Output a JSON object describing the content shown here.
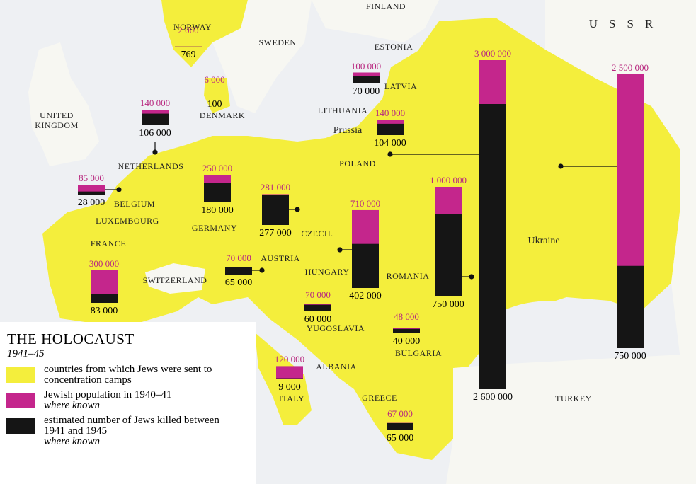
{
  "title": "THE HOLOCAUST",
  "period": "1941–45",
  "legend": [
    {
      "label": "countries from which Jews were sent to concentration camps",
      "color": "#f4ee3c"
    },
    {
      "label": "Jewish population in 1940–41",
      "note": "where known",
      "color": "#c4268c"
    },
    {
      "label": "estimated number of Jews killed between 1941 and 1945",
      "note": "where known",
      "color": "#151515"
    }
  ],
  "map_labels": [
    "NORWAY",
    "SWEDEN",
    "FINLAND",
    "ESTONIA",
    "LATVIA",
    "LITHUANIA",
    "Prussia",
    "POLAND",
    "UNITED KINGDOM",
    "DENMARK",
    "NETHERLANDS",
    "BELGIUM",
    "LUXEMBOURG",
    "GERMANY",
    "CZECH.",
    "FRANCE",
    "AUSTRIA",
    "SWITZERLAND",
    "HUNGARY",
    "ROMANIA",
    "YUGOSLAVIA",
    "BULGARIA",
    "ALBANIA",
    "ITALY",
    "GREECE",
    "TURKEY",
    "Ukraine",
    "USSR"
  ],
  "bars": [
    {
      "population": {
        "value": 2000,
        "label": "2 000"
      },
      "killed": {
        "value": 769,
        "label": "769"
      }
    },
    {
      "population": {
        "value": 6000,
        "label": "6 000"
      },
      "killed": {
        "value": 100,
        "label": "100"
      }
    },
    {
      "population": {
        "value": 140000,
        "label": "140 000"
      },
      "killed": {
        "value": 106000,
        "label": "106 000"
      }
    },
    {
      "population": {
        "value": 85000,
        "label": "85 000"
      },
      "killed": {
        "value": 28000,
        "label": "28 000"
      }
    },
    {
      "population": {
        "value": 250000,
        "label": "250 000"
      },
      "killed": {
        "value": 180000,
        "label": "180 000"
      }
    },
    {
      "population": {
        "value": 281000,
        "label": "281 000"
      },
      "killed": {
        "value": 277000,
        "label": "277 000"
      }
    },
    {
      "population": {
        "value": 70000,
        "label": "70 000"
      },
      "killed": {
        "value": 65000,
        "label": "65 000"
      }
    },
    {
      "population": {
        "value": 300000,
        "label": "300 000"
      },
      "killed": {
        "value": 83000,
        "label": "83 000"
      }
    },
    {
      "population": {
        "value": 100000,
        "label": "100 000"
      },
      "killed": {
        "value": 70000,
        "label": "70 000"
      }
    },
    {
      "population": {
        "value": 140000,
        "label": "140 000"
      },
      "killed": {
        "value": 104000,
        "label": "104 000"
      }
    },
    {
      "population": {
        "value": 710000,
        "label": "710 000"
      },
      "killed": {
        "value": 402000,
        "label": "402 000"
      }
    },
    {
      "population": {
        "value": 1000000,
        "label": "1 000 000"
      },
      "killed": {
        "value": 750000,
        "label": "750 000"
      }
    },
    {
      "population": {
        "value": 70000,
        "label": "70 000"
      },
      "killed": {
        "value": 60000,
        "label": "60 000"
      }
    },
    {
      "population": {
        "value": 48000,
        "label": "48 000"
      },
      "killed": {
        "value": 40000,
        "label": "40 000"
      }
    },
    {
      "population": {
        "value": 120000,
        "label": "120 000"
      },
      "killed": {
        "value": 9000,
        "label": "9 000"
      }
    },
    {
      "population": {
        "value": 67000,
        "label": "67 000"
      },
      "killed": {
        "value": 65000,
        "label": "65 000"
      }
    },
    {
      "population": {
        "value": 3000000,
        "label": "3 000 000"
      },
      "killed": {
        "value": 2600000,
        "label": "2 600 000"
      }
    },
    {
      "population": {
        "value": 2500000,
        "label": "2 500 000"
      },
      "killed": {
        "value": 750000,
        "label": "750 000"
      }
    }
  ]
}
